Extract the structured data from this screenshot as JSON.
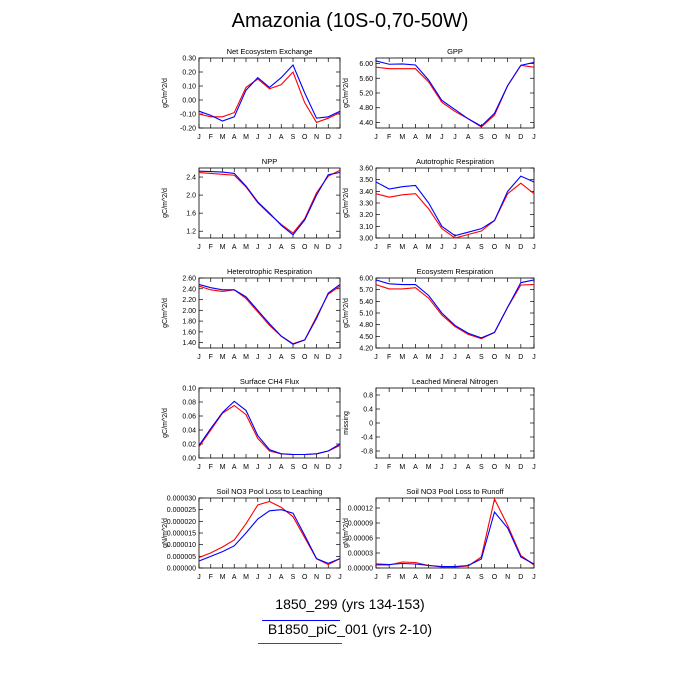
{
  "figure": {
    "title": "Amazonia (10S-0,70-50W)",
    "colors": {
      "series_a": "#0000ff",
      "series_b": "#ff0000"
    },
    "legend": [
      {
        "label": "1850_299 (yrs 134-153)",
        "color": "#0000ff"
      },
      {
        "label": "B1850_piC_001 (yrs 2-10)",
        "color": "#ff0000"
      }
    ]
  },
  "chart_data": [
    {
      "type": "line",
      "title": "Net Ecosystem Exchange",
      "ylabel": "gC/m^2/d",
      "categories": [
        "J",
        "F",
        "M",
        "A",
        "M",
        "J",
        "J",
        "A",
        "S",
        "O",
        "N",
        "D",
        "J"
      ],
      "ylim": [
        -0.2,
        0.3
      ],
      "yticks": [
        "-0.20",
        "-0.10",
        "0.00",
        "0.10",
        "0.20",
        "0.30"
      ],
      "yticks_num": [
        -0.2,
        -0.1,
        0.0,
        0.1,
        0.2,
        0.3
      ],
      "series": [
        {
          "name": "1850_299 (yrs 134-153)",
          "color": "#0000ff",
          "values": [
            -0.08,
            -0.11,
            -0.15,
            -0.12,
            0.07,
            0.16,
            0.09,
            0.16,
            0.25,
            0.05,
            -0.13,
            -0.12,
            -0.08
          ]
        },
        {
          "name": "B1850_piC_001 (yrs 2-10)",
          "color": "#ff0000",
          "values": [
            -0.1,
            -0.12,
            -0.12,
            -0.09,
            0.09,
            0.15,
            0.08,
            0.11,
            0.2,
            -0.02,
            -0.16,
            -0.13,
            -0.09
          ]
        }
      ]
    },
    {
      "type": "line",
      "title": "GPP",
      "ylabel": "gC/m^2/d",
      "categories": [
        "J",
        "F",
        "M",
        "A",
        "M",
        "J",
        "J",
        "A",
        "S",
        "O",
        "N",
        "D",
        "J"
      ],
      "ylim": [
        4.25,
        6.15
      ],
      "yticks": [
        "4.40",
        "4.80",
        "5.20",
        "5.60",
        "6.00"
      ],
      "yticks_num": [
        4.4,
        4.8,
        5.2,
        5.6,
        6.0
      ],
      "series": [
        {
          "name": "1850_299 (yrs 134-153)",
          "color": "#0000ff",
          "values": [
            6.07,
            5.98,
            5.99,
            5.96,
            5.55,
            5.0,
            4.75,
            4.5,
            4.3,
            4.65,
            5.4,
            5.95,
            6.03
          ]
        },
        {
          "name": "B1850_piC_001 (yrs 2-10)",
          "color": "#ff0000",
          "values": [
            5.9,
            5.86,
            5.86,
            5.86,
            5.5,
            4.95,
            4.7,
            4.5,
            4.28,
            4.6,
            5.4,
            5.95,
            5.9
          ]
        }
      ]
    },
    {
      "type": "line",
      "title": "NPP",
      "ylabel": "gC/m^2/d",
      "categories": [
        "J",
        "F",
        "M",
        "A",
        "M",
        "J",
        "J",
        "A",
        "S",
        "O",
        "N",
        "D",
        "J"
      ],
      "ylim": [
        1.05,
        2.6
      ],
      "yticks": [
        "1.2",
        "1.6",
        "2.0",
        "2.4"
      ],
      "yticks_num": [
        1.2,
        1.6,
        2.0,
        2.4
      ],
      "series": [
        {
          "name": "1850_299 (yrs 134-153)",
          "color": "#0000ff",
          "values": [
            2.53,
            2.52,
            2.51,
            2.48,
            2.2,
            1.85,
            1.6,
            1.33,
            1.12,
            1.45,
            2.0,
            2.45,
            2.5
          ]
        },
        {
          "name": "B1850_piC_001 (yrs 2-10)",
          "color": "#ff0000",
          "values": [
            2.5,
            2.48,
            2.46,
            2.44,
            2.18,
            1.83,
            1.58,
            1.35,
            1.16,
            1.48,
            2.05,
            2.42,
            2.55
          ]
        }
      ]
    },
    {
      "type": "line",
      "title": "Autotrophic Respiration",
      "ylabel": "gC/m^2/d",
      "categories": [
        "J",
        "F",
        "M",
        "A",
        "M",
        "J",
        "J",
        "A",
        "S",
        "O",
        "N",
        "D",
        "J"
      ],
      "ylim": [
        3.0,
        3.6
      ],
      "yticks": [
        "3.00",
        "3.10",
        "3.20",
        "3.30",
        "3.40",
        "3.50",
        "3.60"
      ],
      "yticks_num": [
        3.0,
        3.1,
        3.2,
        3.3,
        3.4,
        3.5,
        3.6
      ],
      "series": [
        {
          "name": "1850_299 (yrs 134-153)",
          "color": "#0000ff",
          "values": [
            3.48,
            3.42,
            3.44,
            3.45,
            3.3,
            3.1,
            3.02,
            3.05,
            3.08,
            3.15,
            3.4,
            3.53,
            3.48
          ]
        },
        {
          "name": "B1850_piC_001 (yrs 2-10)",
          "color": "#ff0000",
          "values": [
            3.38,
            3.35,
            3.37,
            3.38,
            3.25,
            3.08,
            3.0,
            3.03,
            3.06,
            3.15,
            3.38,
            3.47,
            3.38
          ]
        }
      ]
    },
    {
      "type": "line",
      "title": "Heterotrophic Respiration",
      "ylabel": "gC/m^2/d",
      "categories": [
        "J",
        "F",
        "M",
        "A",
        "M",
        "J",
        "J",
        "A",
        "S",
        "O",
        "N",
        "D",
        "J"
      ],
      "ylim": [
        1.3,
        2.6
      ],
      "yticks": [
        "1.40",
        "1.60",
        "1.80",
        "2.00",
        "2.20",
        "2.40",
        "2.60"
      ],
      "yticks_num": [
        1.4,
        1.6,
        1.8,
        2.0,
        2.2,
        2.4,
        2.6
      ],
      "series": [
        {
          "name": "1850_299 (yrs 134-153)",
          "color": "#0000ff",
          "values": [
            2.48,
            2.42,
            2.38,
            2.38,
            2.25,
            2.0,
            1.75,
            1.52,
            1.37,
            1.45,
            1.85,
            2.32,
            2.48
          ]
        },
        {
          "name": "B1850_piC_001 (yrs 2-10)",
          "color": "#ff0000",
          "values": [
            2.45,
            2.38,
            2.35,
            2.38,
            2.22,
            1.97,
            1.72,
            1.52,
            1.38,
            1.45,
            1.88,
            2.3,
            2.45
          ]
        }
      ]
    },
    {
      "type": "line",
      "title": "Ecosystem Respiration",
      "ylabel": "gC/m^2/d",
      "categories": [
        "J",
        "F",
        "M",
        "A",
        "M",
        "J",
        "J",
        "A",
        "S",
        "O",
        "N",
        "D",
        "J"
      ],
      "ylim": [
        4.2,
        6.0
      ],
      "yticks": [
        "4.20",
        "4.50",
        "4.80",
        "5.10",
        "5.40",
        "5.70",
        "6.00"
      ],
      "yticks_num": [
        4.2,
        4.5,
        4.8,
        5.1,
        5.4,
        5.7,
        6.0
      ],
      "series": [
        {
          "name": "1850_299 (yrs 134-153)",
          "color": "#0000ff",
          "values": [
            5.95,
            5.85,
            5.83,
            5.83,
            5.55,
            5.1,
            4.78,
            4.58,
            4.46,
            4.6,
            5.25,
            5.88,
            5.95
          ]
        },
        {
          "name": "B1850_piC_001 (yrs 2-10)",
          "color": "#ff0000",
          "values": [
            5.83,
            5.72,
            5.72,
            5.75,
            5.48,
            5.05,
            4.75,
            4.55,
            4.44,
            4.6,
            5.25,
            5.82,
            5.83
          ]
        }
      ]
    },
    {
      "type": "line",
      "title": "Surface CH4 Flux",
      "ylabel": "gC/m^2/d",
      "categories": [
        "J",
        "F",
        "M",
        "A",
        "M",
        "J",
        "J",
        "A",
        "S",
        "O",
        "N",
        "D",
        "J"
      ],
      "ylim": [
        0.0,
        0.1
      ],
      "yticks": [
        "0.00",
        "0.02",
        "0.04",
        "0.06",
        "0.08",
        "0.10"
      ],
      "yticks_num": [
        0.0,
        0.02,
        0.04,
        0.06,
        0.08,
        0.1
      ],
      "series": [
        {
          "name": "1850_299 (yrs 134-153)",
          "color": "#0000ff",
          "values": [
            0.018,
            0.042,
            0.065,
            0.081,
            0.068,
            0.032,
            0.012,
            0.006,
            0.005,
            0.005,
            0.006,
            0.01,
            0.02
          ]
        },
        {
          "name": "B1850_piC_001 (yrs 2-10)",
          "color": "#ff0000",
          "values": [
            0.016,
            0.04,
            0.064,
            0.075,
            0.062,
            0.028,
            0.01,
            0.006,
            0.005,
            0.005,
            0.006,
            0.01,
            0.018
          ]
        }
      ]
    },
    {
      "type": "line",
      "title": "Leached Mineral Nitrogen",
      "ylabel": "missing",
      "categories": [
        "J",
        "F",
        "M",
        "A",
        "M",
        "J",
        "J",
        "A",
        "S",
        "O",
        "N",
        "D",
        "J"
      ],
      "ylim": [
        -1.0,
        1.0
      ],
      "yticks": [
        "-0.8",
        "-0.4",
        "0",
        "0.4",
        "0.8"
      ],
      "yticks_num": [
        -0.8,
        -0.4,
        0,
        0.4,
        0.8
      ],
      "series": []
    },
    {
      "type": "line",
      "title": "Soil NO3 Pool Loss to Leaching",
      "ylabel": "gN/m^2/d",
      "categories": [
        "J",
        "F",
        "M",
        "A",
        "M",
        "J",
        "J",
        "A",
        "S",
        "O",
        "N",
        "D",
        "J"
      ],
      "ylim": [
        0.0,
        3e-05
      ],
      "yticks": [
        "0.000000",
        "0.000005",
        "0.000010",
        "0.000015",
        "0.000020",
        "0.000025",
        "0.000030"
      ],
      "yticks_num": [
        0.0,
        5e-06,
        1e-05,
        1.5e-05,
        2e-05,
        2.5e-05,
        3e-05
      ],
      "series": [
        {
          "name": "1850_299 (yrs 134-153)",
          "color": "#0000ff",
          "values": [
            3e-06,
            5e-06,
            7e-06,
            9.5e-06,
            1.5e-05,
            2.1e-05,
            2.45e-05,
            2.5e-05,
            2.35e-05,
            1.4e-05,
            4e-06,
            2e-06,
            4e-06
          ]
        },
        {
          "name": "B1850_piC_001 (yrs 2-10)",
          "color": "#ff0000",
          "values": [
            4.5e-06,
            6.5e-06,
            9e-06,
            1.2e-05,
            1.9e-05,
            2.7e-05,
            2.85e-05,
            2.6e-05,
            2.2e-05,
            1.3e-05,
            4e-06,
            1.5e-06,
            4e-06
          ]
        }
      ]
    },
    {
      "type": "line",
      "title": "Soil NO3 Pool Loss to Runoff",
      "ylabel": "gN/m^2/d",
      "categories": [
        "J",
        "F",
        "M",
        "A",
        "M",
        "J",
        "J",
        "A",
        "S",
        "O",
        "N",
        "D",
        "J"
      ],
      "ylim": [
        0.0,
        0.00014
      ],
      "yticks": [
        "0.00000",
        "0.00003",
        "0.00006",
        "0.00009",
        "0.00012"
      ],
      "yticks_num": [
        0.0,
        3e-05,
        6e-05,
        9e-05,
        0.00012
      ],
      "series": [
        {
          "name": "1850_299 (yrs 134-153)",
          "color": "#0000ff",
          "values": [
            8e-06,
            7e-06,
            9e-06,
            8e-06,
            5e-06,
            3e-06,
            3e-06,
            5e-06,
            1.8e-05,
            0.000112,
            8e-05,
            2.2e-05,
            8e-06
          ]
        },
        {
          "name": "B1850_piC_001 (yrs 2-10)",
          "color": "#ff0000",
          "values": [
            6e-06,
            6e-06,
            1.2e-05,
            1.1e-05,
            5e-06,
            2e-06,
            2e-06,
            4e-06,
            2.2e-05,
            0.000138,
            8.5e-05,
            2.5e-05,
            6e-06
          ]
        }
      ]
    }
  ]
}
